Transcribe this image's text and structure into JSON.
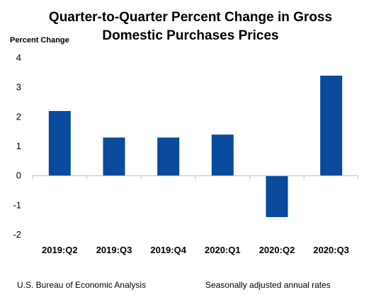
{
  "chart_data": {
    "type": "bar",
    "title_lines": [
      "Quarter-to-Quarter Percent Change in Gross",
      "Domestic Purchases Prices"
    ],
    "ylabel": "Percent Change",
    "xlabel": "",
    "categories": [
      "2019:Q2",
      "2019:Q3",
      "2019:Q4",
      "2020:Q1",
      "2020:Q2",
      "2020:Q3"
    ],
    "values": [
      2.2,
      1.3,
      1.3,
      1.4,
      -1.4,
      3.4
    ],
    "ylim": [
      -2,
      4
    ],
    "yticks": [
      4,
      3,
      2,
      1,
      0,
      -1,
      -2
    ],
    "bar_color": "#0a4a9c",
    "grid": false,
    "legend": "none"
  },
  "footer": {
    "source": "U.S. Bureau of Economic Analysis",
    "note": "Seasonally adjusted annual rates"
  }
}
